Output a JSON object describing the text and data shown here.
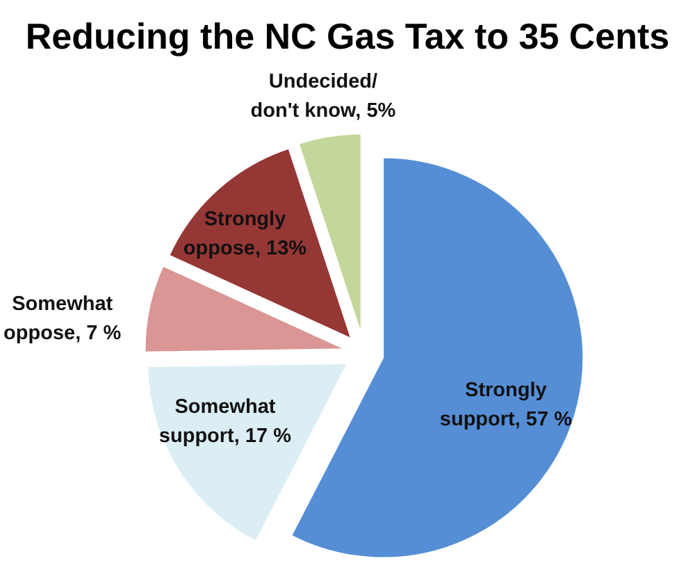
{
  "chart_data": {
    "type": "pie",
    "title": "Reducing the NC Gas Tax to 35 Cents",
    "categories": [
      "Strongly support",
      "Somewhat support",
      "Somewhat oppose",
      "Strongly oppose",
      "Undecided/don't know"
    ],
    "values": [
      57,
      17,
      7,
      13,
      5
    ],
    "colors": [
      "#558ed5",
      "#dbeef4",
      "#d99694",
      "#953735",
      "#c3d69b"
    ],
    "value_labels": [
      "57 %",
      "17 %",
      "7 %",
      "13%",
      "5%"
    ]
  }
}
